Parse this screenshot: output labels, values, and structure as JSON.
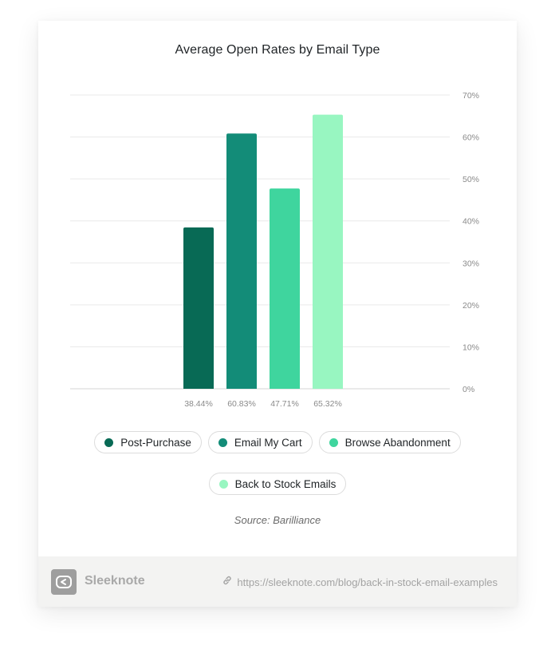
{
  "chart_data": {
    "type": "bar",
    "title": "Average Open Rates by Email Type",
    "categories": [
      "Post-Purchase",
      "Email My Cart",
      "Browse Abandonment",
      "Back to Stock Emails"
    ],
    "values": [
      38.44,
      60.83,
      47.71,
      65.32
    ],
    "value_labels": [
      "38.44%",
      "60.83%",
      "47.71%",
      "65.32%"
    ],
    "colors": [
      "#086a55",
      "#138c78",
      "#3fd59e",
      "#98f6c1"
    ],
    "y_axis": {
      "side": "right",
      "ticks": [
        "0%",
        "10%",
        "20%",
        "30%",
        "40%",
        "50%",
        "60%",
        "70%"
      ],
      "tick_values": [
        0,
        10,
        20,
        30,
        40,
        50,
        60,
        70
      ],
      "ylim": [
        0,
        70
      ]
    },
    "grid": true,
    "legend_placement": "bottom"
  },
  "legend": {
    "items": [
      {
        "label": "Post-Purchase",
        "color": "#086a55"
      },
      {
        "label": "Email My Cart",
        "color": "#138c78"
      },
      {
        "label": "Browse Abandonment",
        "color": "#3fd59e"
      },
      {
        "label": "Back to Stock Emails",
        "color": "#98f6c1"
      }
    ]
  },
  "source": "Source: Barilliance",
  "footer": {
    "brand": "Sleeknote",
    "url": "https://sleeknote.com/blog/back-in-stock-email-examples",
    "logo_icon": "sleeknote-logo-icon",
    "link_icon": "link-icon"
  }
}
